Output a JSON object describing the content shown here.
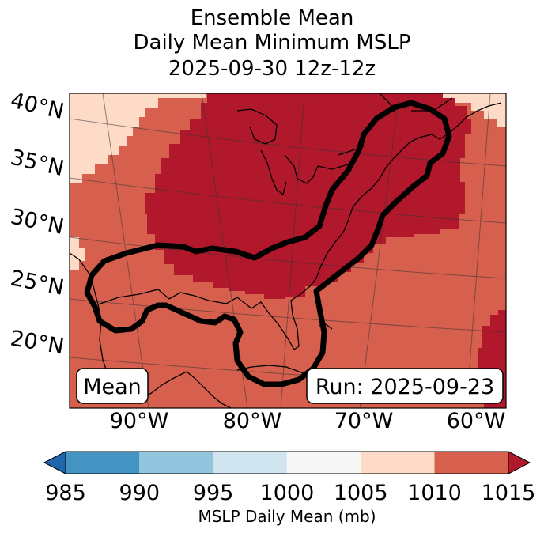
{
  "title": {
    "line1": "Ensemble Mean",
    "line2": "Daily Mean Minimum MSLP",
    "line3": "2025-09-30 12z-12z"
  },
  "latitude_labels": [
    "40°N",
    "35°N",
    "30°N",
    "25°N",
    "20°N"
  ],
  "longitude_labels": [
    "90°W",
    "80°W",
    "70°W",
    "60°W"
  ],
  "annotations": {
    "mean_box": "Mean",
    "run_box": "Run: 2025-09-23"
  },
  "colorbar": {
    "ticks": [
      "985",
      "990",
      "995",
      "1000",
      "1005",
      "1010",
      "1015"
    ],
    "label": "MSLP Daily Mean (mb)",
    "colors": {
      "under": "#2166ac",
      "b985_990": "#4393c3",
      "b990_995": "#92c5de",
      "b995_1000": "#d1e5f0",
      "b1000_1005": "#f7f7f7",
      "b1005_1010": "#fddbc7",
      "b1010_1015": "#d6604d",
      "over": "#b2182b"
    }
  }
}
